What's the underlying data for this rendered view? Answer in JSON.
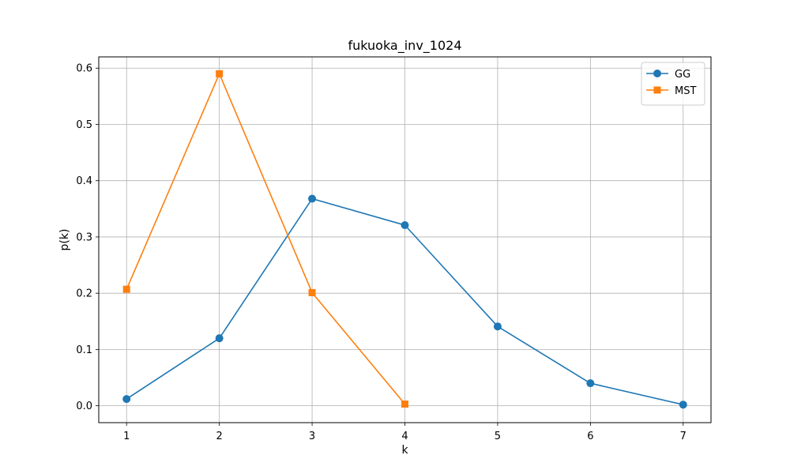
{
  "chart_data": {
    "type": "line",
    "title": "fukuoka_inv_1024",
    "xlabel": "k",
    "ylabel": "p(k)",
    "xlim": [
      0.7,
      7.3
    ],
    "ylim": [
      -0.03,
      0.62
    ],
    "x_ticks": [
      1,
      2,
      3,
      4,
      5,
      6,
      7
    ],
    "y_ticks": [
      0.0,
      0.1,
      0.2,
      0.3,
      0.4,
      0.5,
      0.6
    ],
    "y_tick_labels": [
      "0.0",
      "0.1",
      "0.2",
      "0.3",
      "0.4",
      "0.5",
      "0.6"
    ],
    "grid": true,
    "legend_position": "top-right",
    "series": [
      {
        "name": "GG",
        "marker": "circle",
        "color": "#1f77b4",
        "x": [
          1,
          2,
          3,
          4,
          5,
          6,
          7
        ],
        "y": [
          0.012,
          0.12,
          0.368,
          0.321,
          0.141,
          0.04,
          0.002
        ]
      },
      {
        "name": "MST",
        "marker": "square",
        "color": "#ff7f0e",
        "x": [
          1,
          2,
          3,
          4
        ],
        "y": [
          0.207,
          0.59,
          0.201,
          0.003
        ]
      }
    ]
  }
}
